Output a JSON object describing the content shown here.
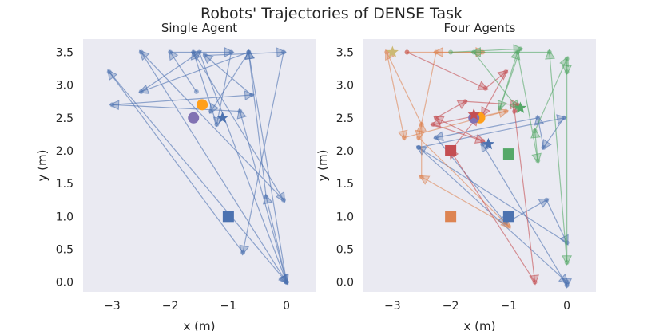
{
  "figure": {
    "title": "Robots' Trajectories of DENSE Task"
  },
  "chart_data": [
    {
      "type": "scatter",
      "title": "Single Agent",
      "xlabel": "x (m)",
      "ylabel": "y (m)",
      "xlim": [
        -3.5,
        0.5
      ],
      "ylim": [
        -0.15,
        3.7
      ],
      "xticks": [
        -3,
        -2,
        -1,
        0
      ],
      "xtick_labels": [
        "−3",
        "−2",
        "−1",
        "0"
      ],
      "yticks": [
        0.0,
        0.5,
        1.0,
        1.5,
        2.0,
        2.5,
        3.0,
        3.5
      ],
      "ytick_labels": [
        "0.0",
        "0.5",
        "1.0",
        "1.5",
        "2.0",
        "2.5",
        "3.0",
        "3.5"
      ],
      "grid": false,
      "trajectories": [
        {
          "color": "#4c72b0",
          "points": [
            [
              -1.55,
              2.9
            ],
            [
              -2.0,
              3.5
            ],
            [
              -0.95,
              3.5
            ],
            [
              -1.2,
              2.4
            ],
            [
              -1.6,
              3.5
            ],
            [
              -0.05,
              1.25
            ],
            [
              -2.5,
              3.5
            ],
            [
              0.0,
              0.0
            ],
            [
              -0.8,
              2.6
            ],
            [
              -3.0,
              2.7
            ],
            [
              -0.6,
              2.85
            ],
            [
              -1.4,
              3.45
            ],
            [
              -0.05,
              3.5
            ],
            [
              -0.75,
              0.45
            ],
            [
              -3.05,
              3.2
            ],
            [
              0.0,
              0.0
            ],
            [
              -0.65,
              3.5
            ],
            [
              -2.5,
              2.9
            ],
            [
              -1.5,
              3.5
            ],
            [
              0.0,
              0.0
            ],
            [
              -0.35,
              1.3
            ],
            [
              -0.65,
              3.5
            ],
            [
              -1.3,
              2.6
            ]
          ]
        }
      ],
      "starts": [
        {
          "color": "#4c72b0",
          "x": -1.0,
          "y": 1.0
        }
      ],
      "goals": [
        {
          "color": "#4c72b0",
          "x": -1.1,
          "y": 2.5
        }
      ],
      "extra_markers": [
        {
          "color": "#ff9f1a",
          "x": -1.45,
          "y": 2.7
        },
        {
          "color": "#8172b3",
          "x": -1.6,
          "y": 2.5
        }
      ]
    },
    {
      "type": "scatter",
      "title": "Four Agents",
      "xlabel": "x (m)",
      "ylabel": "y (m)",
      "xlim": [
        -3.5,
        0.5
      ],
      "ylim": [
        -0.15,
        3.7
      ],
      "xticks": [
        -3,
        -2,
        -1,
        0
      ],
      "xtick_labels": [
        "−3",
        "−2",
        "−1",
        "0"
      ],
      "yticks": [
        0.0,
        0.5,
        1.0,
        1.5,
        2.0,
        2.5,
        3.0,
        3.5
      ],
      "ytick_labels": [
        "0.0",
        "0.5",
        "1.0",
        "1.5",
        "2.0",
        "2.5",
        "3.0",
        "3.5"
      ],
      "grid": false,
      "trajectories": [
        {
          "color": "#4c72b0",
          "points": [
            [
              -2.55,
              2.05
            ],
            [
              -0.05,
              2.5
            ],
            [
              -0.4,
              2.05
            ],
            [
              -0.5,
              2.5
            ],
            [
              -2.25,
              2.2
            ],
            [
              -1.05,
              0.9
            ],
            [
              -0.35,
              1.25
            ],
            [
              0.0,
              0.6
            ],
            [
              -2.55,
              2.05
            ],
            [
              0.0,
              0.0
            ],
            [
              0.0,
              -0.05
            ],
            [
              -1.45,
              2.1
            ]
          ]
        },
        {
          "color": "#dd8452",
          "points": [
            [
              -2.75,
              3.5
            ],
            [
              -1.45,
              3.5
            ],
            [
              -2.25,
              3.5
            ],
            [
              -2.55,
              2.2
            ],
            [
              -1.0,
              0.85
            ],
            [
              -2.5,
              1.6
            ],
            [
              -2.5,
              2.4
            ],
            [
              -3.1,
              3.5
            ],
            [
              -2.8,
              2.2
            ],
            [
              -1.05,
              2.6
            ],
            [
              -1.6,
              2.5
            ]
          ]
        },
        {
          "color": "#c44e52",
          "points": [
            [
              -2.75,
              3.5
            ],
            [
              -1.4,
              2.95
            ],
            [
              -1.05,
              3.2
            ],
            [
              -1.45,
              2.55
            ],
            [
              -2.3,
              2.4
            ],
            [
              -1.45,
              2.15
            ],
            [
              -2.25,
              2.5
            ],
            [
              -1.75,
              2.75
            ],
            [
              -0.85,
              2.7
            ],
            [
              -0.9,
              2.6
            ],
            [
              -0.55,
              0.0
            ],
            [
              -2.0,
              2.0
            ],
            [
              -1.55,
              2.5
            ]
          ]
        },
        {
          "color": "#55a868",
          "points": [
            [
              -2.0,
              3.5
            ],
            [
              -0.8,
              3.55
            ],
            [
              -1.15,
              2.65
            ],
            [
              -0.85,
              3.5
            ],
            [
              -0.5,
              1.85
            ],
            [
              -0.55,
              2.3
            ],
            [
              0.0,
              3.4
            ],
            [
              0.0,
              3.2
            ],
            [
              0.0,
              0.3
            ],
            [
              -0.3,
              3.5
            ],
            [
              -1.6,
              3.5
            ],
            [
              -0.85,
              2.65
            ]
          ]
        }
      ],
      "starts": [
        {
          "color": "#4c72b0",
          "x": -1.0,
          "y": 1.0
        },
        {
          "color": "#dd8452",
          "x": -2.0,
          "y": 1.0
        },
        {
          "color": "#c44e52",
          "x": -2.0,
          "y": 2.0
        },
        {
          "color": "#55a868",
          "x": -1.0,
          "y": 1.95
        }
      ],
      "goals": [
        {
          "color": "#4c72b0",
          "x": -1.35,
          "y": 2.1
        },
        {
          "color": "#ccb974",
          "x": -3.0,
          "y": 3.5
        },
        {
          "color": "#c44e52",
          "x": -1.6,
          "y": 2.55
        },
        {
          "color": "#55a868",
          "x": -0.8,
          "y": 2.65
        }
      ],
      "extra_markers": [
        {
          "color": "#ff9f1a",
          "x": -1.5,
          "y": 2.5
        },
        {
          "color": "#8172b3",
          "x": -1.6,
          "y": 2.5
        }
      ]
    }
  ]
}
